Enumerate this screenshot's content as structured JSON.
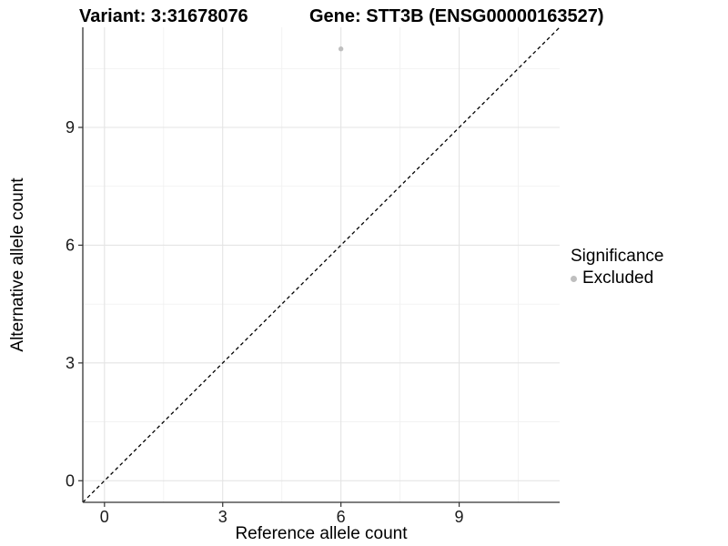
{
  "chart_data": {
    "type": "scatter",
    "titles": {
      "variant": "Variant: 3:31678076",
      "gene": "Gene: STT3B (ENSG00000163527)"
    },
    "xlabel": "Reference allele count",
    "ylabel": "Alternative allele count",
    "xlim": [
      -0.55,
      11.55
    ],
    "ylim": [
      -0.55,
      11.55
    ],
    "x_ticks": [
      0,
      3,
      6,
      9
    ],
    "y_ticks": [
      0,
      3,
      6,
      9
    ],
    "grid": "major+minor",
    "legend_position": "right",
    "reference_line": {
      "type": "identity",
      "slope": 1,
      "intercept": 0,
      "style": "dashed",
      "color": "#000000"
    },
    "series": [
      {
        "name": "Excluded",
        "color": "#bfbfbf",
        "points": [
          {
            "x": 6,
            "y": 11
          }
        ]
      }
    ],
    "legend": {
      "title": "Significance",
      "items": [
        {
          "label": "Excluded",
          "color": "#bfbfbf"
        }
      ]
    },
    "colors": {
      "background": "#ffffff",
      "axis": "#333333",
      "grid_major": "#e4e4e4",
      "grid_minor": "#f1f1f1",
      "text": "#000000"
    }
  }
}
